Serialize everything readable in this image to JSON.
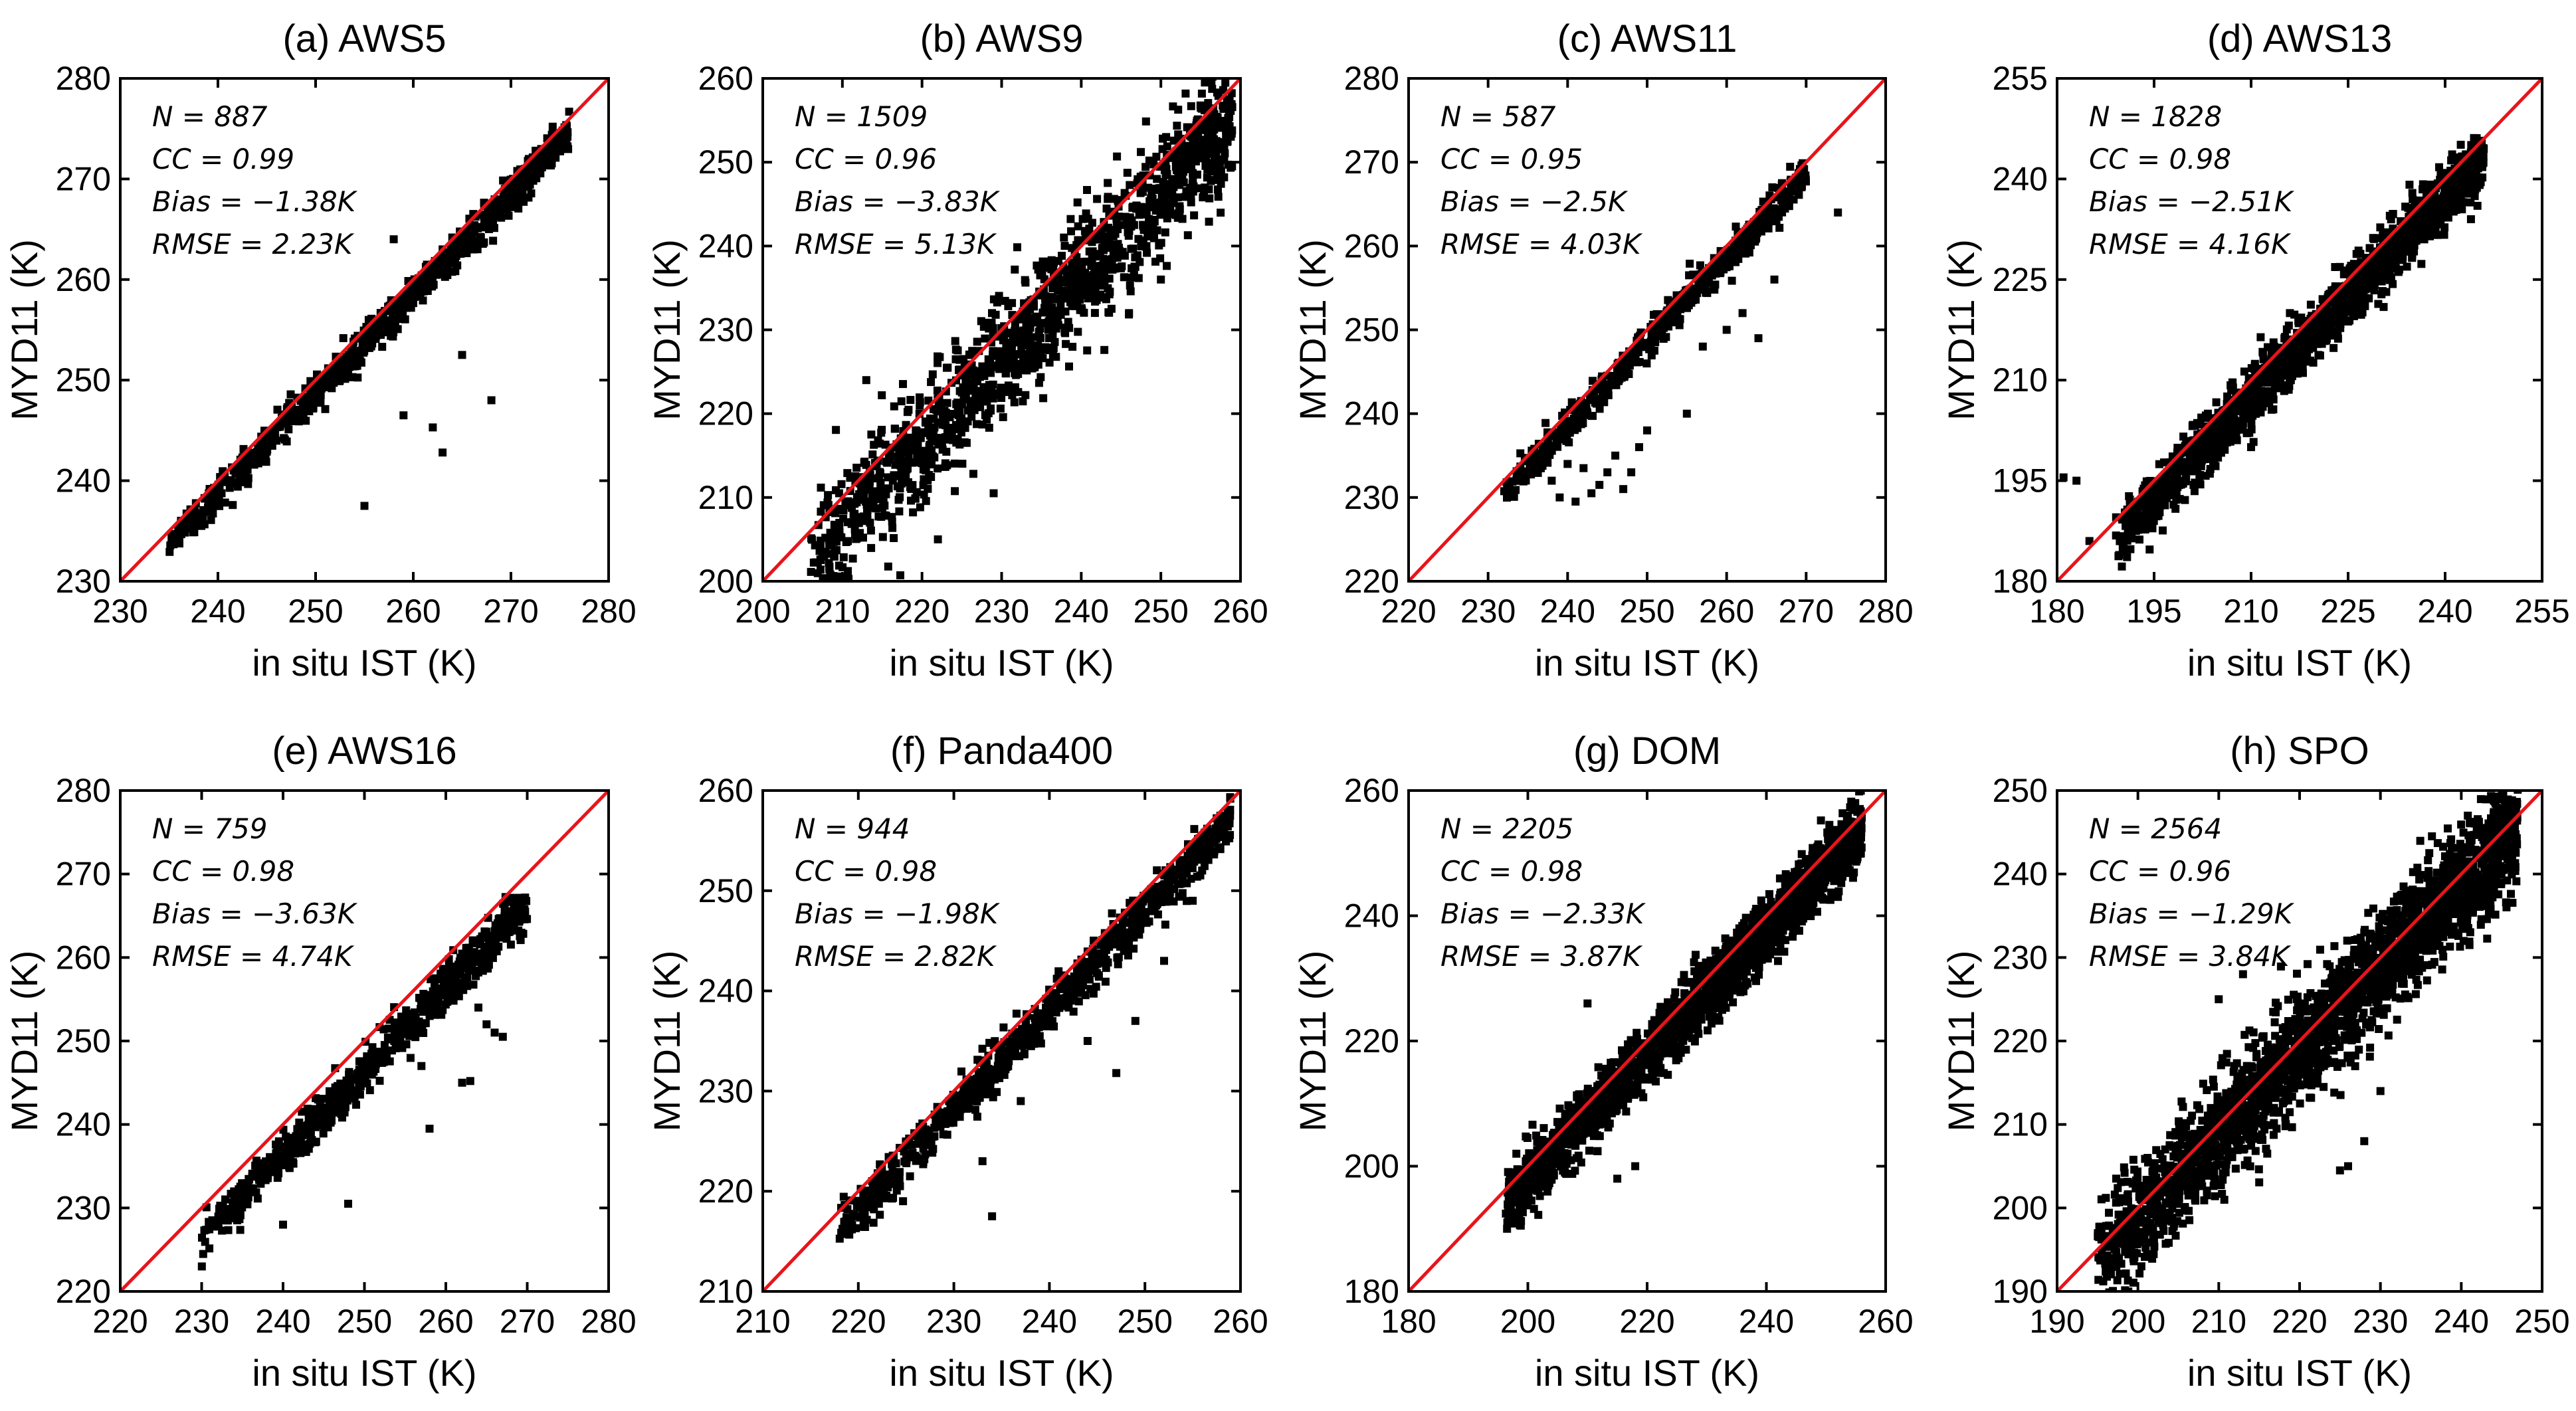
{
  "chart_data": [
    {
      "type": "scatter",
      "title": "(a) AWS5",
      "xlabel": "in situ IST (K)",
      "ylabel": "MYD11 (K)",
      "xlim": [
        230,
        280
      ],
      "ylim": [
        230,
        280
      ],
      "xticks": [
        230,
        240,
        250,
        260,
        270,
        280
      ],
      "yticks": [
        230,
        240,
        250,
        260,
        270,
        280
      ],
      "stats": [
        "N = 887",
        "CC = 0.99",
        "Bias = −1.38K",
        "RMSE = 2.23K"
      ],
      "cluster": {
        "n": 900,
        "x_min": 235,
        "x_max": 276,
        "slope": 1.0,
        "offset": -1.38,
        "spread": 0.9
      },
      "outliers": [
        [
          259,
          246.5
        ],
        [
          262,
          245.3
        ],
        [
          263,
          242.8
        ],
        [
          268,
          248
        ],
        [
          265,
          252.5
        ],
        [
          255,
          237.5
        ],
        [
          258,
          264
        ],
        [
          263,
          263
        ]
      ],
      "identity_line": true
    },
    {
      "type": "scatter",
      "title": "(b) AWS9",
      "xlabel": "in situ IST (K)",
      "ylabel": "MYD11 (K)",
      "xlim": [
        200,
        260
      ],
      "ylim": [
        200,
        260
      ],
      "xticks": [
        200,
        210,
        220,
        230,
        240,
        250,
        260
      ],
      "yticks": [
        200,
        210,
        220,
        230,
        240,
        250,
        260
      ],
      "stats": [
        "N = 1509",
        "CC = 0.96",
        "Bias = −3.83K",
        "RMSE = 5.13K"
      ],
      "cluster": {
        "n": 1400,
        "x_min": 206,
        "x_max": 259,
        "slope": 1.0,
        "offset": -3.83,
        "spread": 3.6
      },
      "outliers": [
        [
          222,
          205
        ],
        [
          229,
          210.5
        ],
        [
          246,
          232
        ],
        [
          250,
          236
        ],
        [
          213,
          224
        ]
      ],
      "identity_line": true
    },
    {
      "type": "scatter",
      "title": "(c) AWS11",
      "xlabel": "in situ IST (K)",
      "ylabel": "MYD11 (K)",
      "xlim": [
        220,
        280
      ],
      "ylim": [
        220,
        280
      ],
      "xticks": [
        220,
        230,
        240,
        250,
        260,
        270,
        280
      ],
      "yticks": [
        220,
        230,
        240,
        250,
        260,
        270,
        280
      ],
      "stats": [
        "N = 587",
        "CC = 0.95",
        "Bias = −2.5K",
        "RMSE = 4.03K"
      ],
      "cluster": {
        "n": 560,
        "x_min": 232,
        "x_max": 270,
        "slope": 1.0,
        "offset": -1.5,
        "spread": 1.1
      },
      "outliers": [
        [
          241,
          229.5
        ],
        [
          243,
          230.5
        ],
        [
          245,
          233
        ],
        [
          247,
          231
        ],
        [
          240,
          234
        ],
        [
          249,
          236
        ],
        [
          244,
          231.5
        ],
        [
          246,
          235
        ],
        [
          242,
          233.5
        ],
        [
          238,
          232
        ],
        [
          239,
          230
        ],
        [
          248,
          233
        ],
        [
          250,
          238
        ],
        [
          255,
          240
        ],
        [
          262,
          252
        ],
        [
          264,
          249
        ],
        [
          266,
          256
        ],
        [
          274,
          264
        ],
        [
          260,
          250
        ],
        [
          257,
          248
        ]
      ],
      "identity_line": true
    },
    {
      "type": "scatter",
      "title": "(d) AWS13",
      "xlabel": "in situ IST (K)",
      "ylabel": "MYD11 (K)",
      "xlim": [
        180,
        255
      ],
      "ylim": [
        180,
        255
      ],
      "xticks": [
        180,
        195,
        210,
        225,
        240,
        255
      ],
      "yticks": [
        180,
        195,
        210,
        225,
        240,
        255
      ],
      "stats": [
        "N = 1828",
        "CC = 0.98",
        "Bias = −2.51K",
        "RMSE = 4.16K"
      ],
      "cluster": {
        "n": 1700,
        "x_min": 189,
        "x_max": 246,
        "slope": 1.0,
        "offset": -2.51,
        "spread": 2.2
      },
      "outliers": [
        [
          181,
          195.5
        ],
        [
          183,
          195
        ],
        [
          185,
          186
        ],
        [
          202,
          198
        ],
        [
          244,
          234
        ],
        [
          245,
          236
        ],
        [
          216,
          220
        ],
        [
          210,
          200
        ]
      ],
      "identity_line": true
    },
    {
      "type": "scatter",
      "title": "(e) AWS16",
      "xlabel": "in situ IST (K)",
      "ylabel": "MYD11 (K)",
      "xlim": [
        220,
        280
      ],
      "ylim": [
        220,
        280
      ],
      "xticks": [
        220,
        230,
        240,
        250,
        260,
        270,
        280
      ],
      "yticks": [
        220,
        230,
        240,
        250,
        260,
        270,
        280
      ],
      "stats": [
        "N = 759",
        "CC = 0.98",
        "Bias = −3.63K",
        "RMSE = 4.74K"
      ],
      "cluster": {
        "n": 740,
        "x_min": 230,
        "x_max": 270,
        "slope": 1.0,
        "offset": -3.63,
        "spread": 1.3
      },
      "outliers": [
        [
          266,
          251
        ],
        [
          267,
          250.5
        ],
        [
          264,
          254
        ],
        [
          258,
          239.5
        ],
        [
          248,
          230.5
        ],
        [
          262,
          245
        ],
        [
          263,
          245.2
        ],
        [
          265,
          252
        ],
        [
          257,
          247
        ],
        [
          240,
          228
        ]
      ],
      "identity_line": true
    },
    {
      "type": "scatter",
      "title": "(f) Panda400",
      "xlabel": "in situ IST (K)",
      "ylabel": "MYD11 (K)",
      "xlim": [
        210,
        260
      ],
      "ylim": [
        210,
        260
      ],
      "xticks": [
        210,
        220,
        230,
        240,
        250,
        260
      ],
      "yticks": [
        210,
        220,
        230,
        240,
        250,
        260
      ],
      "stats": [
        "N = 944",
        "CC = 0.98",
        "Bias = −1.98K",
        "RMSE = 2.82K"
      ],
      "cluster": {
        "n": 920,
        "x_min": 218,
        "x_max": 259,
        "slope": 1.0,
        "offset": -1.98,
        "spread": 1.1
      },
      "outliers": [
        [
          234,
          217.5
        ],
        [
          247,
          231.8
        ],
        [
          237,
          229
        ],
        [
          233,
          223
        ],
        [
          244,
          235
        ],
        [
          252,
          243
        ],
        [
          249,
          237
        ],
        [
          255,
          249
        ]
      ],
      "identity_line": true
    },
    {
      "type": "scatter",
      "title": "(g) DOM",
      "xlabel": "in situ IST (K)",
      "ylabel": "MYD11 (K)",
      "xlim": [
        180,
        260
      ],
      "ylim": [
        180,
        260
      ],
      "xticks": [
        180,
        200,
        220,
        240,
        260
      ],
      "yticks": [
        180,
        200,
        220,
        240,
        260
      ],
      "stats": [
        "N = 2205",
        "CC = 0.98",
        "Bias = −2.33K",
        "RMSE = 3.87K"
      ],
      "cluster": {
        "n": 2100,
        "x_min": 196,
        "x_max": 256,
        "slope": 1.0,
        "offset": -2.33,
        "spread": 2.5
      },
      "outliers": [
        [
          252,
          243
        ],
        [
          250,
          247
        ],
        [
          246,
          241
        ],
        [
          215,
          198
        ],
        [
          218,
          200
        ],
        [
          210,
          226
        ]
      ],
      "identity_line": true
    },
    {
      "type": "scatter",
      "title": "(h) SPO",
      "xlabel": "in situ IST (K)",
      "ylabel": "MYD11 (K)",
      "xlim": [
        190,
        250
      ],
      "ylim": [
        190,
        250
      ],
      "xticks": [
        190,
        200,
        210,
        220,
        230,
        240,
        250
      ],
      "yticks": [
        190,
        200,
        210,
        220,
        230,
        240,
        250
      ],
      "stats": [
        "N = 2564",
        "CC = 0.96",
        "Bias = −1.29K",
        "RMSE = 3.84K"
      ],
      "cluster": {
        "n": 2400,
        "x_min": 195,
        "x_max": 247,
        "slope": 1.0,
        "offset": -1.29,
        "spread": 3.3
      },
      "outliers": [
        [
          226,
          205
        ],
        [
          228,
          208
        ],
        [
          225,
          204.5
        ],
        [
          210,
          225
        ],
        [
          213,
          228
        ],
        [
          228,
          233
        ],
        [
          230,
          214
        ]
      ],
      "identity_line": true
    }
  ],
  "colors": {
    "points": "#000000",
    "identity_line": "#e8141a",
    "axes": "#000000",
    "background": "#ffffff"
  }
}
